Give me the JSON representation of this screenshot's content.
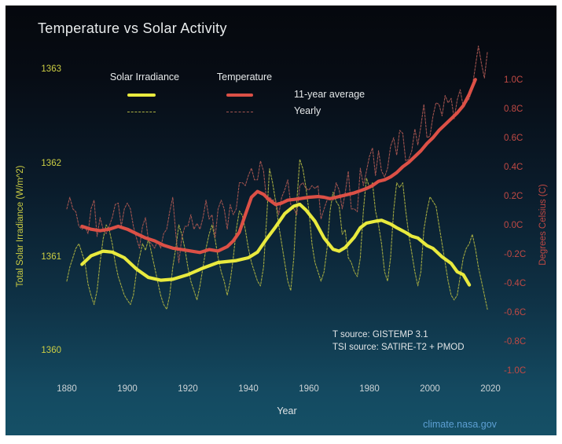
{
  "title": "Temperature vs Solar Activity",
  "legend": {
    "solar_header": "Solar Irradiance",
    "temp_header": "Temperature",
    "row_avg": "11-year average",
    "row_yearly": "Yearly"
  },
  "axes": {
    "solar": {
      "label": "Total Solar Irradiance (W/m^2)",
      "ticks": [
        1363,
        1362,
        1361,
        1360
      ]
    },
    "temp": {
      "label": "Degrees Celsius (C)",
      "ticks": [
        {
          "value": 1.0,
          "label": "1.0C"
        },
        {
          "value": 0.8,
          "label": "0.8C"
        },
        {
          "value": 0.6,
          "label": "0.6C"
        },
        {
          "value": 0.4,
          "label": "0.4C"
        },
        {
          "value": 0.2,
          "label": "0.2C"
        },
        {
          "value": 0.0,
          "label": "0.0C"
        },
        {
          "value": -0.2,
          "label": "-0.2C"
        },
        {
          "value": -0.4,
          "label": "-0.4C"
        },
        {
          "value": -0.6,
          "label": "-0.6C"
        },
        {
          "value": -0.8,
          "label": "-0.8C"
        },
        {
          "value": -1.0,
          "label": "-1.0C"
        }
      ]
    },
    "x": {
      "label": "Year",
      "ticks": [
        1880,
        1900,
        1920,
        1940,
        1960,
        1980,
        2000,
        2020
      ]
    }
  },
  "annotations": {
    "t_source": "T source: GISTEMP 3.1",
    "tsi_source": "TSI source: SATIRE-T2 + PMOD",
    "credit": "climate.nasa.gov"
  },
  "colors": {
    "solar_avg": "#e9ea3e",
    "solar_yearly": "#a8ae41",
    "temp_avg": "#dc5046",
    "temp_yearly": "#a65550",
    "solar_axis_text": "#ccce43",
    "temp_axis_text": "#c04944",
    "credit_text": "#5d9fd3"
  },
  "chart_data": {
    "type": "line",
    "title": "Temperature vs Solar Activity",
    "xlabel": "Year",
    "xlim": [
      1880,
      2020
    ],
    "ylabel_left": "Total Solar Irradiance (W/m^2)",
    "ylim_left": [
      1359.95,
      1363.12
    ],
    "ylabel_right": "Degrees Celsius (C)",
    "ylim_right": [
      -1.15,
      1.15
    ],
    "grid": false,
    "legend_position": "top",
    "series": [
      {
        "name": "Solar Irradiance Yearly",
        "axis": "solar",
        "style": "thin-dashed",
        "start": 1880,
        "step": 1,
        "values": [
          1360.75,
          1360.9,
          1361.0,
          1361.1,
          1361.15,
          1361.05,
          1360.95,
          1360.72,
          1360.6,
          1360.5,
          1360.65,
          1360.95,
          1361.2,
          1361.35,
          1361.3,
          1361.15,
          1360.95,
          1360.8,
          1360.7,
          1360.6,
          1360.55,
          1360.5,
          1360.6,
          1360.85,
          1361.0,
          1361.15,
          1361.08,
          1361.2,
          1361.05,
          1360.9,
          1360.75,
          1360.6,
          1360.5,
          1360.45,
          1360.6,
          1360.9,
          1361.1,
          1361.35,
          1361.25,
          1361.1,
          1360.9,
          1360.75,
          1360.65,
          1360.55,
          1360.7,
          1360.9,
          1361.1,
          1361.25,
          1361.35,
          1361.2,
          1361.0,
          1360.85,
          1360.75,
          1360.6,
          1360.75,
          1361.0,
          1361.3,
          1361.5,
          1361.45,
          1361.3,
          1361.1,
          1360.95,
          1360.85,
          1360.75,
          1360.7,
          1360.9,
          1361.4,
          1361.95,
          1361.8,
          1361.6,
          1361.35,
          1361.15,
          1360.95,
          1360.75,
          1360.65,
          1361.0,
          1361.6,
          1362.05,
          1361.95,
          1361.75,
          1361.5,
          1361.15,
          1360.95,
          1360.85,
          1360.75,
          1360.85,
          1361.1,
          1361.5,
          1361.7,
          1361.6,
          1361.55,
          1361.25,
          1361.3,
          1361.0,
          1360.95,
          1360.85,
          1360.8,
          1361.0,
          1361.5,
          1361.85,
          1361.75,
          1361.8,
          1361.5,
          1361.35,
          1361.15,
          1360.85,
          1360.75,
          1361.0,
          1361.5,
          1361.8,
          1361.75,
          1361.8,
          1361.5,
          1361.25,
          1361.05,
          1360.85,
          1360.7,
          1360.85,
          1361.3,
          1361.5,
          1361.65,
          1361.6,
          1361.55,
          1361.35,
          1361.15,
          1360.95,
          1360.75,
          1360.6,
          1360.55,
          1360.6,
          1360.8,
          1361.0,
          1361.1,
          1361.15,
          1361.25,
          1361.1,
          1360.9,
          1360.75,
          1360.6,
          1360.45
        ]
      },
      {
        "name": "Temperature Yearly",
        "axis": "temp",
        "style": "thin-dashed",
        "start": 1880,
        "step": 1,
        "values": [
          0.12,
          0.2,
          0.12,
          0.1,
          0.0,
          -0.02,
          0.0,
          -0.05,
          0.12,
          0.18,
          -0.07,
          0.06,
          -0.02,
          -0.05,
          0.0,
          0.06,
          0.15,
          0.16,
          0.0,
          0.12,
          0.16,
          0.12,
          0.0,
          -0.08,
          -0.15,
          0.0,
          0.06,
          -0.1,
          -0.12,
          -0.15,
          -0.1,
          -0.15,
          -0.05,
          -0.02,
          0.1,
          0.2,
          -0.05,
          -0.25,
          -0.08,
          0.0,
          0.0,
          0.08,
          -0.02,
          0.02,
          -0.02,
          0.06,
          0.18,
          0.05,
          0.08,
          -0.08,
          0.12,
          0.18,
          0.12,
          -0.02,
          0.15,
          0.08,
          0.12,
          0.3,
          0.3,
          0.28,
          0.35,
          0.4,
          0.32,
          0.32,
          0.45,
          0.38,
          0.18,
          0.2,
          0.18,
          0.18,
          0.08,
          0.2,
          0.25,
          0.32,
          0.15,
          0.12,
          0.08,
          0.28,
          0.3,
          0.26,
          0.25,
          0.28,
          0.26,
          0.28,
          0.05,
          0.12,
          0.18,
          0.2,
          0.18,
          0.3,
          0.25,
          0.12,
          0.23,
          0.38,
          0.12,
          0.12,
          0.1,
          0.4,
          0.28,
          0.38,
          0.48,
          0.54,
          0.35,
          0.52,
          0.38,
          0.34,
          0.4,
          0.55,
          0.61,
          0.49,
          0.66,
          0.64,
          0.45,
          0.46,
          0.52,
          0.67,
          0.56,
          0.69,
          0.84,
          0.61,
          0.62,
          0.76,
          0.85,
          0.84,
          0.76,
          0.9,
          0.85,
          0.88,
          0.74,
          0.87,
          0.94,
          0.82,
          0.85,
          0.88,
          0.96,
          1.1,
          1.24,
          1.12,
          1.02,
          1.2
        ]
      },
      {
        "name": "Temperature 11-year average",
        "axis": "temp",
        "style": "thick",
        "points": [
          [
            1885,
            0.0
          ],
          [
            1888,
            -0.02
          ],
          [
            1891,
            -0.03
          ],
          [
            1894,
            -0.02
          ],
          [
            1897,
            0.0
          ],
          [
            1900,
            -0.02
          ],
          [
            1903,
            -0.05
          ],
          [
            1906,
            -0.08
          ],
          [
            1909,
            -0.1
          ],
          [
            1912,
            -0.13
          ],
          [
            1915,
            -0.15
          ],
          [
            1918,
            -0.16
          ],
          [
            1921,
            -0.17
          ],
          [
            1924,
            -0.18
          ],
          [
            1927,
            -0.16
          ],
          [
            1930,
            -0.17
          ],
          [
            1933,
            -0.14
          ],
          [
            1935,
            -0.1
          ],
          [
            1937,
            -0.04
          ],
          [
            1939,
            0.08
          ],
          [
            1941,
            0.2
          ],
          [
            1943,
            0.24
          ],
          [
            1945,
            0.22
          ],
          [
            1947,
            0.18
          ],
          [
            1949,
            0.15
          ],
          [
            1951,
            0.16
          ],
          [
            1953,
            0.18
          ],
          [
            1955,
            0.185
          ],
          [
            1957,
            0.19
          ],
          [
            1960,
            0.2
          ],
          [
            1963,
            0.205
          ],
          [
            1965,
            0.2
          ],
          [
            1967,
            0.19
          ],
          [
            1969,
            0.2
          ],
          [
            1971,
            0.21
          ],
          [
            1973,
            0.22
          ],
          [
            1975,
            0.23
          ],
          [
            1977,
            0.245
          ],
          [
            1979,
            0.26
          ],
          [
            1981,
            0.28
          ],
          [
            1983,
            0.31
          ],
          [
            1985,
            0.32
          ],
          [
            1987,
            0.34
          ],
          [
            1989,
            0.37
          ],
          [
            1991,
            0.41
          ],
          [
            1993,
            0.44
          ],
          [
            1995,
            0.48
          ],
          [
            1997,
            0.52
          ],
          [
            1999,
            0.57
          ],
          [
            2001,
            0.61
          ],
          [
            2003,
            0.66
          ],
          [
            2005,
            0.7
          ],
          [
            2007,
            0.74
          ],
          [
            2009,
            0.78
          ],
          [
            2011,
            0.83
          ],
          [
            2013,
            0.91
          ],
          [
            2014,
            0.96
          ],
          [
            2015,
            1.01
          ]
        ]
      },
      {
        "name": "Solar Irradiance 11-year average",
        "axis": "solar",
        "style": "thick",
        "points": [
          [
            1885,
            1360.93
          ],
          [
            1888,
            1361.02
          ],
          [
            1892,
            1361.07
          ],
          [
            1895,
            1361.06
          ],
          [
            1899,
            1361.0
          ],
          [
            1903,
            1360.88
          ],
          [
            1907,
            1360.79
          ],
          [
            1911,
            1360.76
          ],
          [
            1915,
            1360.77
          ],
          [
            1920,
            1360.82
          ],
          [
            1925,
            1360.89
          ],
          [
            1930,
            1360.95
          ],
          [
            1936,
            1360.97
          ],
          [
            1940,
            1361.0
          ],
          [
            1943,
            1361.06
          ],
          [
            1946,
            1361.2
          ],
          [
            1949,
            1361.33
          ],
          [
            1952,
            1361.47
          ],
          [
            1955,
            1361.55
          ],
          [
            1957,
            1361.57
          ],
          [
            1959,
            1361.51
          ],
          [
            1962,
            1361.39
          ],
          [
            1965,
            1361.21
          ],
          [
            1968,
            1361.09
          ],
          [
            1970,
            1361.07
          ],
          [
            1972,
            1361.11
          ],
          [
            1975,
            1361.22
          ],
          [
            1977,
            1361.32
          ],
          [
            1979,
            1361.37
          ],
          [
            1982,
            1361.39
          ],
          [
            1984,
            1361.4
          ],
          [
            1987,
            1361.36
          ],
          [
            1989,
            1361.32
          ],
          [
            1992,
            1361.27
          ],
          [
            1994,
            1361.23
          ],
          [
            1996,
            1361.21
          ],
          [
            1999,
            1361.13
          ],
          [
            2001,
            1361.1
          ],
          [
            2004,
            1361.01
          ],
          [
            2007,
            1360.94
          ],
          [
            2009,
            1360.85
          ],
          [
            2011,
            1360.82
          ],
          [
            2013,
            1360.71
          ]
        ]
      }
    ]
  }
}
